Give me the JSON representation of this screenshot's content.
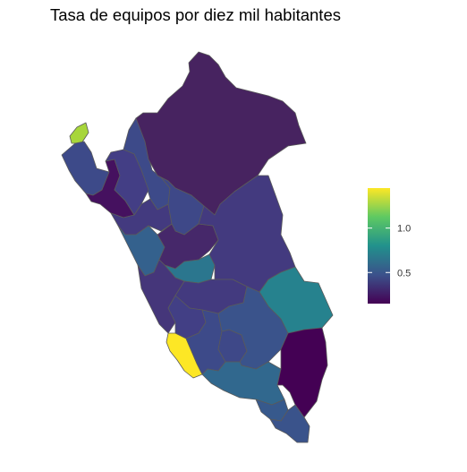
{
  "title": "Tasa de equipos por diez mil habitantes",
  "legend": {
    "ticks": [
      {
        "value": 0.5,
        "label": "0.5"
      },
      {
        "value": 1.0,
        "label": "1.0"
      }
    ],
    "min": 0.15,
    "max": 1.45,
    "palette": "viridis",
    "colors": [
      "#440154",
      "#3b528b",
      "#21918c",
      "#5ec962",
      "#fde725"
    ]
  },
  "regions": [
    {
      "name": "Tumbes",
      "value": 1.15,
      "color": "#a7d63b"
    },
    {
      "name": "Piura",
      "value": 0.42,
      "color": "#3d4a89"
    },
    {
      "name": "Lambayeque",
      "value": 0.18,
      "color": "#45115f"
    },
    {
      "name": "La Libertad",
      "value": 0.34,
      "color": "#433a7f"
    },
    {
      "name": "Amazonas",
      "value": 0.42,
      "color": "#3d4a89"
    },
    {
      "name": "Loreto",
      "value": 0.26,
      "color": "#472360"
    },
    {
      "name": "Cajamarca",
      "value": 0.33,
      "color": "#433e85"
    },
    {
      "name": "San Martin",
      "value": 0.4,
      "color": "#3e4888"
    },
    {
      "name": "Ancash",
      "value": 0.55,
      "color": "#34618d"
    },
    {
      "name": "Huanuco",
      "value": 0.28,
      "color": "#46286a"
    },
    {
      "name": "Pasco",
      "value": 0.68,
      "color": "#2b768e"
    },
    {
      "name": "Ucayali",
      "value": 0.34,
      "color": "#433a7f"
    },
    {
      "name": "Lima",
      "value": 0.32,
      "color": "#45367a"
    },
    {
      "name": "Junin",
      "value": 0.34,
      "color": "#433a7f"
    },
    {
      "name": "Huancavelica",
      "value": 0.36,
      "color": "#423f85"
    },
    {
      "name": "Ica",
      "value": 1.42,
      "color": "#fde725"
    },
    {
      "name": "Ayacucho",
      "value": 0.42,
      "color": "#3d4a89"
    },
    {
      "name": "Apurimac",
      "value": 0.4,
      "color": "#3e4888"
    },
    {
      "name": "Cusco",
      "value": 0.44,
      "color": "#3a538b"
    },
    {
      "name": "Madre de Dios",
      "value": 0.72,
      "color": "#26828e"
    },
    {
      "name": "Arequipa",
      "value": 0.58,
      "color": "#31688e"
    },
    {
      "name": "Puno",
      "value": 0.15,
      "color": "#440154"
    },
    {
      "name": "Moquegua",
      "value": 0.48,
      "color": "#37598c"
    },
    {
      "name": "Tacna",
      "value": 0.44,
      "color": "#3a538b"
    }
  ]
}
